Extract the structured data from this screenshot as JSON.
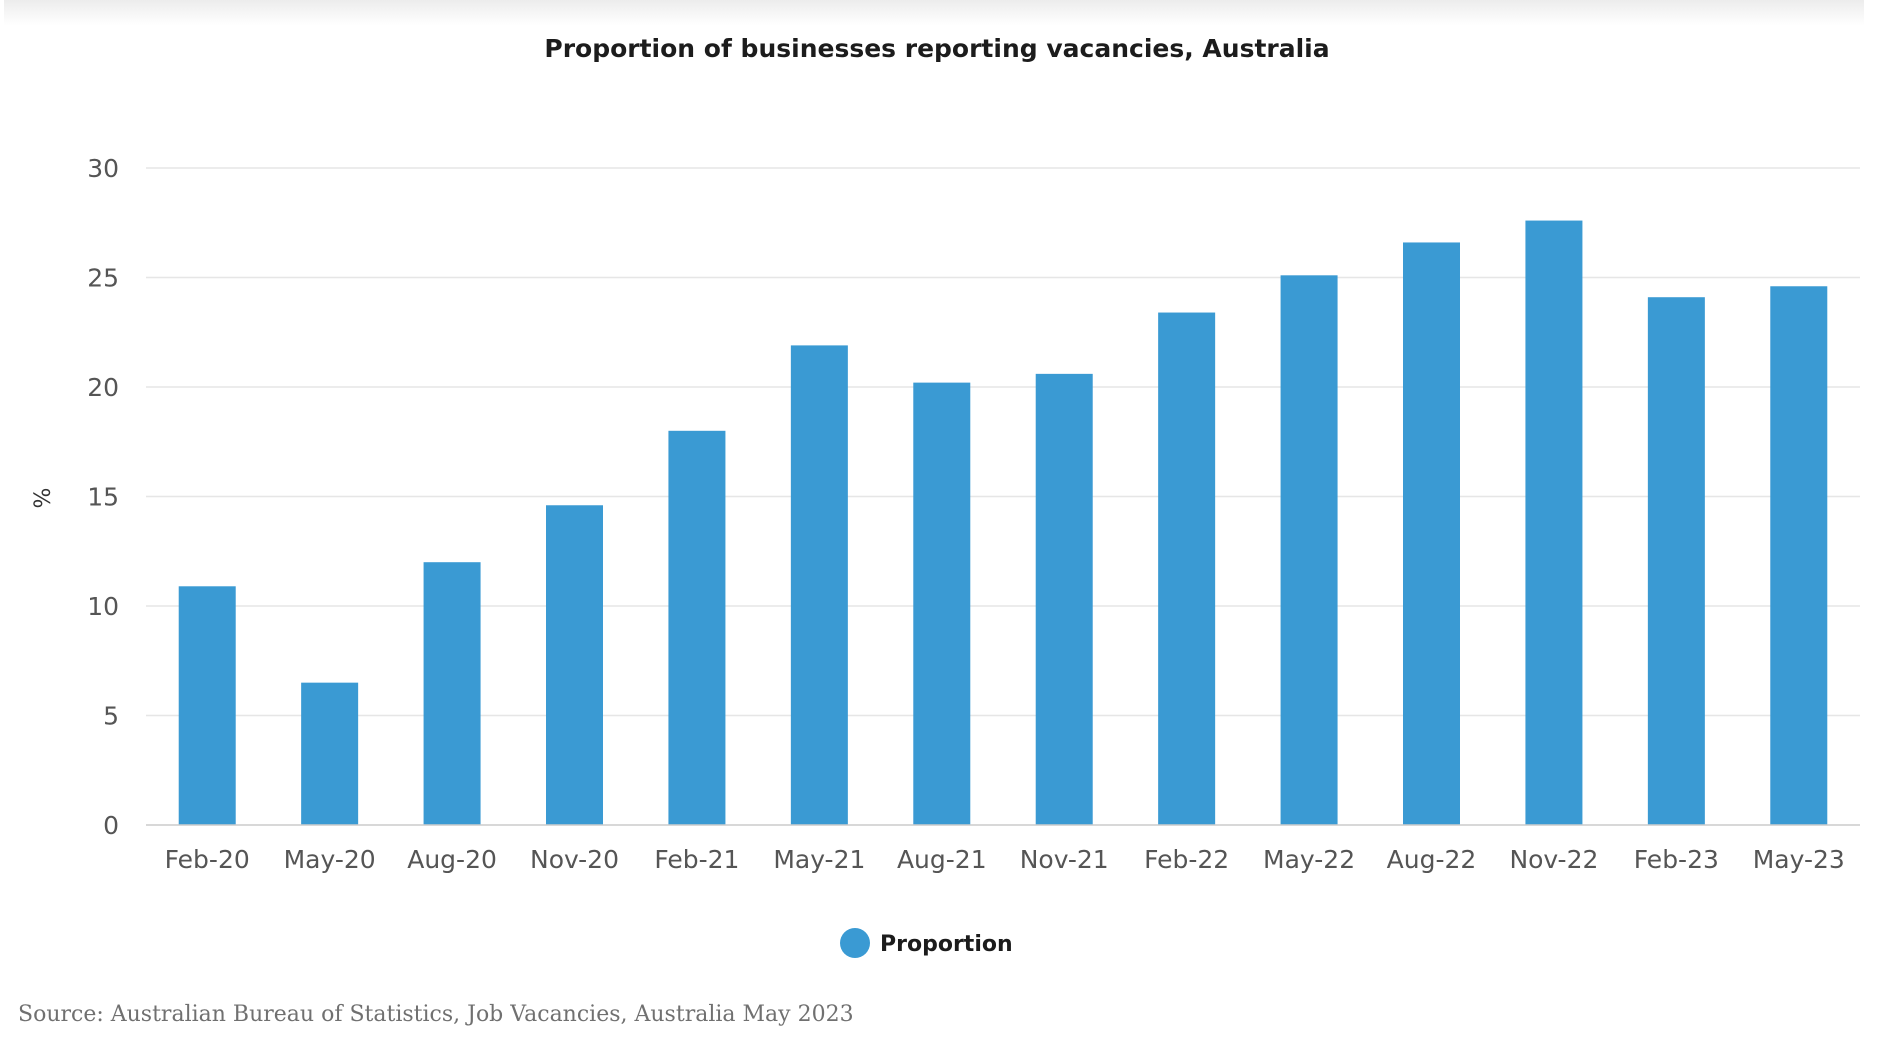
{
  "chart_data": {
    "type": "bar",
    "title": "Proportion of businesses reporting vacancies, Australia",
    "ylabel": "%",
    "xlabel": "",
    "ylim": [
      0,
      30
    ],
    "yticks": [
      0,
      5,
      10,
      15,
      20,
      25,
      30
    ],
    "yticks_labels": [
      "0",
      "5",
      "10",
      "15",
      "20",
      "25",
      "30"
    ],
    "grid": true,
    "legend_position": "bottom-center",
    "categories": [
      "Feb-20",
      "May-20",
      "Aug-20",
      "Nov-20",
      "Feb-21",
      "May-21",
      "Aug-21",
      "Nov-21",
      "Feb-22",
      "May-22",
      "Aug-22",
      "Nov-22",
      "Feb-23",
      "May-23"
    ],
    "series": [
      {
        "name": "Proportion",
        "color": "#3a9ad3",
        "values": [
          10.9,
          6.5,
          12.0,
          14.6,
          18.0,
          21.9,
          20.2,
          20.6,
          23.4,
          25.1,
          26.6,
          27.6,
          24.1,
          24.6
        ]
      }
    ],
    "source": "Source: Australian Bureau of Statistics, Job Vacancies, Australia May 2023"
  }
}
